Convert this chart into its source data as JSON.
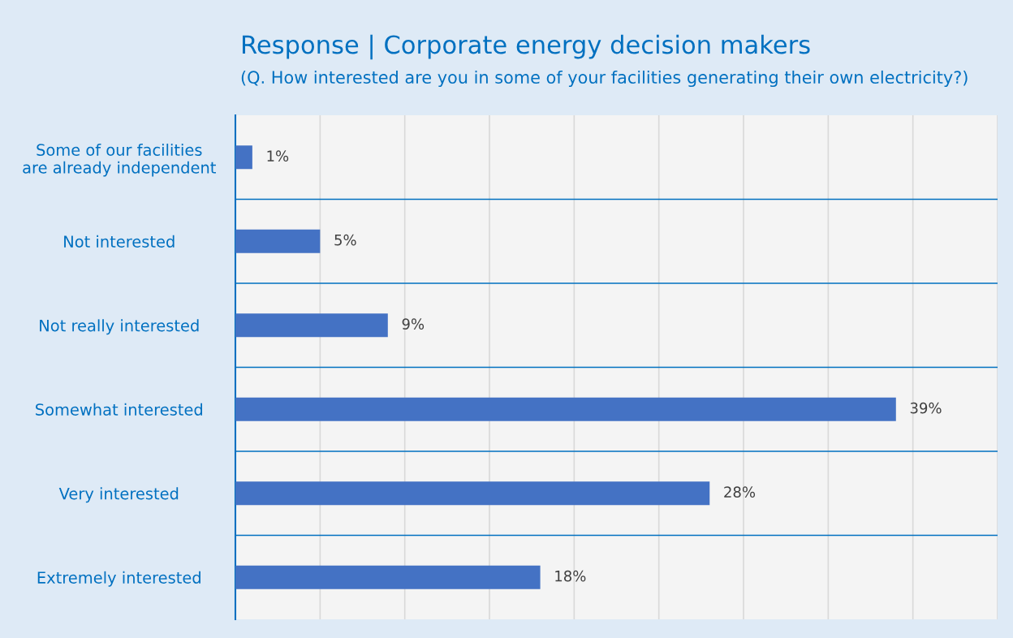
{
  "chart_data": {
    "type": "bar",
    "orientation": "horizontal",
    "title": "Response | Corporate energy decision makers",
    "subtitle": "(Q. How interested are you in some of your facilities generating their own electricity?)",
    "categories": [
      "Some of our facilities\nare already independent",
      "Not interested",
      "Not really interested",
      "Somewhat interested",
      "Very interested",
      "Extremely interested"
    ],
    "values": [
      1,
      5,
      9,
      39,
      28,
      18
    ],
    "value_labels": [
      "1%",
      "5%",
      "9%",
      "39%",
      "28%",
      "18%"
    ],
    "color": "#4472c4",
    "xlim": [
      0,
      45
    ],
    "xticks": [
      {
        "value": 0,
        "label": null
      },
      {
        "value": 5,
        "label": null
      },
      {
        "value": 10,
        "label": null
      },
      {
        "value": 15,
        "label": null
      },
      {
        "value": 20,
        "label": null
      },
      {
        "value": 25,
        "label": null
      },
      {
        "value": 30,
        "label": null
      },
      {
        "value": 35,
        "label": null
      },
      {
        "value": 40,
        "label": null
      },
      {
        "value": 45,
        "label": null
      }
    ],
    "tick_labels": "y",
    "grid": "x",
    "legend": false
  }
}
